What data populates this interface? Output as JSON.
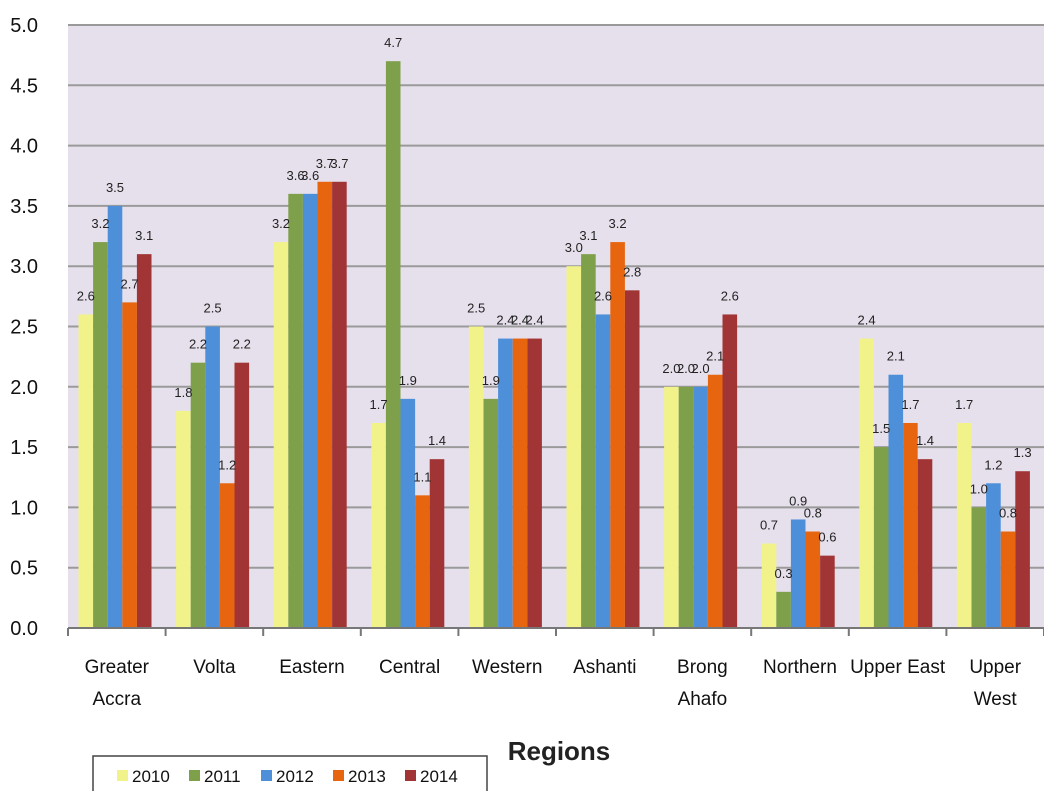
{
  "chart_data": {
    "type": "bar",
    "title": "",
    "xlabel": "Regions",
    "ylabel": "",
    "ylim": [
      0,
      5
    ],
    "yticks": [
      "0.0",
      "0.5",
      "1.0",
      "1.5",
      "2.0",
      "2.5",
      "3.0",
      "3.5",
      "4.0",
      "4.5",
      "5.0"
    ],
    "grid": true,
    "legend_position": "bottom-left",
    "categories": [
      [
        "Greater",
        "Accra"
      ],
      [
        "Volta"
      ],
      [
        "Eastern"
      ],
      [
        "Central"
      ],
      [
        "Western"
      ],
      [
        "Ashanti"
      ],
      [
        "Brong",
        "Ahafo"
      ],
      [
        "Northern"
      ],
      [
        "Upper East"
      ],
      [
        "Upper",
        "West"
      ]
    ],
    "series": [
      {
        "name": "2010",
        "color": "#f2f28a",
        "values": [
          2.6,
          1.8,
          3.2,
          1.7,
          2.5,
          3.0,
          2.0,
          0.7,
          2.4,
          1.7
        ]
      },
      {
        "name": "2011",
        "color": "#7fa04b",
        "values": [
          3.2,
          2.2,
          3.6,
          4.7,
          1.9,
          3.1,
          2.0,
          0.3,
          1.5,
          1.0
        ]
      },
      {
        "name": "2012",
        "color": "#4d8fd9",
        "values": [
          3.5,
          2.5,
          3.6,
          1.9,
          2.4,
          2.6,
          2.0,
          0.9,
          2.1,
          1.2
        ]
      },
      {
        "name": "2013",
        "color": "#e8650f",
        "values": [
          2.7,
          1.2,
          3.7,
          1.1,
          2.4,
          3.2,
          2.1,
          0.8,
          1.7,
          0.8
        ]
      },
      {
        "name": "2014",
        "color": "#a13535",
        "values": [
          3.1,
          2.2,
          3.7,
          1.4,
          2.4,
          2.8,
          2.6,
          0.6,
          1.4,
          1.3
        ]
      }
    ],
    "colors": {
      "plot_background": "#e6e0ec",
      "gridline": "#9a9a9a"
    }
  }
}
